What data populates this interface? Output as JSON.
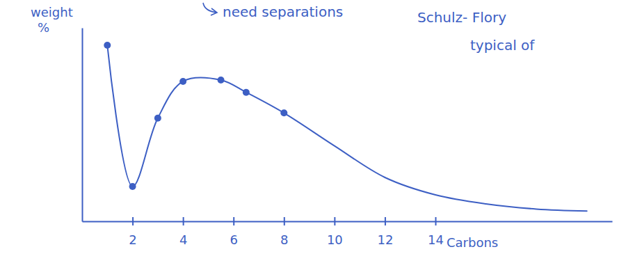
{
  "chart_data": {
    "type": "line",
    "y_label": "weight %",
    "x_label": "Carbons",
    "annotations": [
      {
        "text": "need separations"
      },
      {
        "text": "Schulz- Flory"
      },
      {
        "text": "typical of"
      }
    ],
    "color": "#3d5fc4",
    "xlim": [
      0,
      21
    ],
    "ylim": [
      0,
      30
    ],
    "xticks": [
      2,
      4,
      6,
      8,
      10,
      12,
      14
    ],
    "tick_labels": "x",
    "grid": false,
    "series": [
      {
        "type": "scatter",
        "marker": "circle",
        "x": [
          1,
          2,
          3,
          4,
          5.5,
          6.5,
          8
        ],
        "values": [
          27.3,
          5.4,
          16,
          21.7,
          21.9,
          20,
          16.8
        ]
      },
      {
        "type": "line",
        "line_style": "solid",
        "x": [
          1,
          2,
          3,
          4,
          5.5,
          6.5,
          8,
          10,
          12,
          14,
          16,
          18,
          20
        ],
        "values": [
          27.3,
          5.4,
          16,
          21.7,
          21.9,
          20,
          16.8,
          11.7,
          6.8,
          4.1,
          2.7,
          1.9,
          1.6
        ]
      }
    ]
  }
}
